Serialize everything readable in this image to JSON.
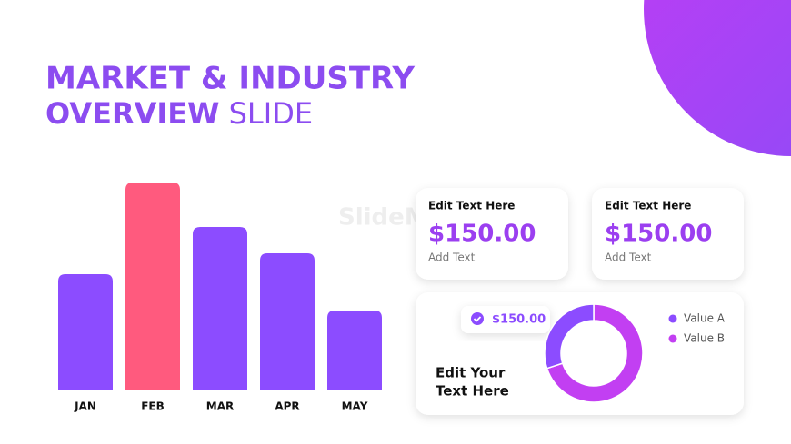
{
  "title": {
    "line1": "MARKET & INDUSTRY",
    "line2_bold": "OVERVIEW",
    "line2_light": "SLIDE"
  },
  "watermark": "SlideModel",
  "cards": [
    {
      "heading": "Edit Text Here",
      "amount": "$150.00",
      "caption": "Add Text"
    },
    {
      "heading": "Edit Text Here",
      "amount": "$150.00",
      "caption": "Add Text"
    }
  ],
  "donut_card": {
    "badge": "$150.00",
    "text_line1": "Edit Your",
    "text_line2": "Text Here"
  },
  "chart_data": [
    {
      "type": "bar",
      "categories": [
        "JAN",
        "FEB",
        "MAR",
        "APR",
        "MAY"
      ],
      "values": [
        128,
        229,
        180,
        151,
        88
      ],
      "colors": [
        "#8c4cff",
        "#ff5a7e",
        "#8c4cff",
        "#8c4cff",
        "#8c4cff"
      ],
      "ylim": [
        0,
        229
      ]
    },
    {
      "type": "pie",
      "categories": [
        "Value A",
        "Value B"
      ],
      "values": [
        30,
        70
      ],
      "colors": [
        "#8c4cff",
        "#c23ff2"
      ],
      "donut": true
    }
  ]
}
